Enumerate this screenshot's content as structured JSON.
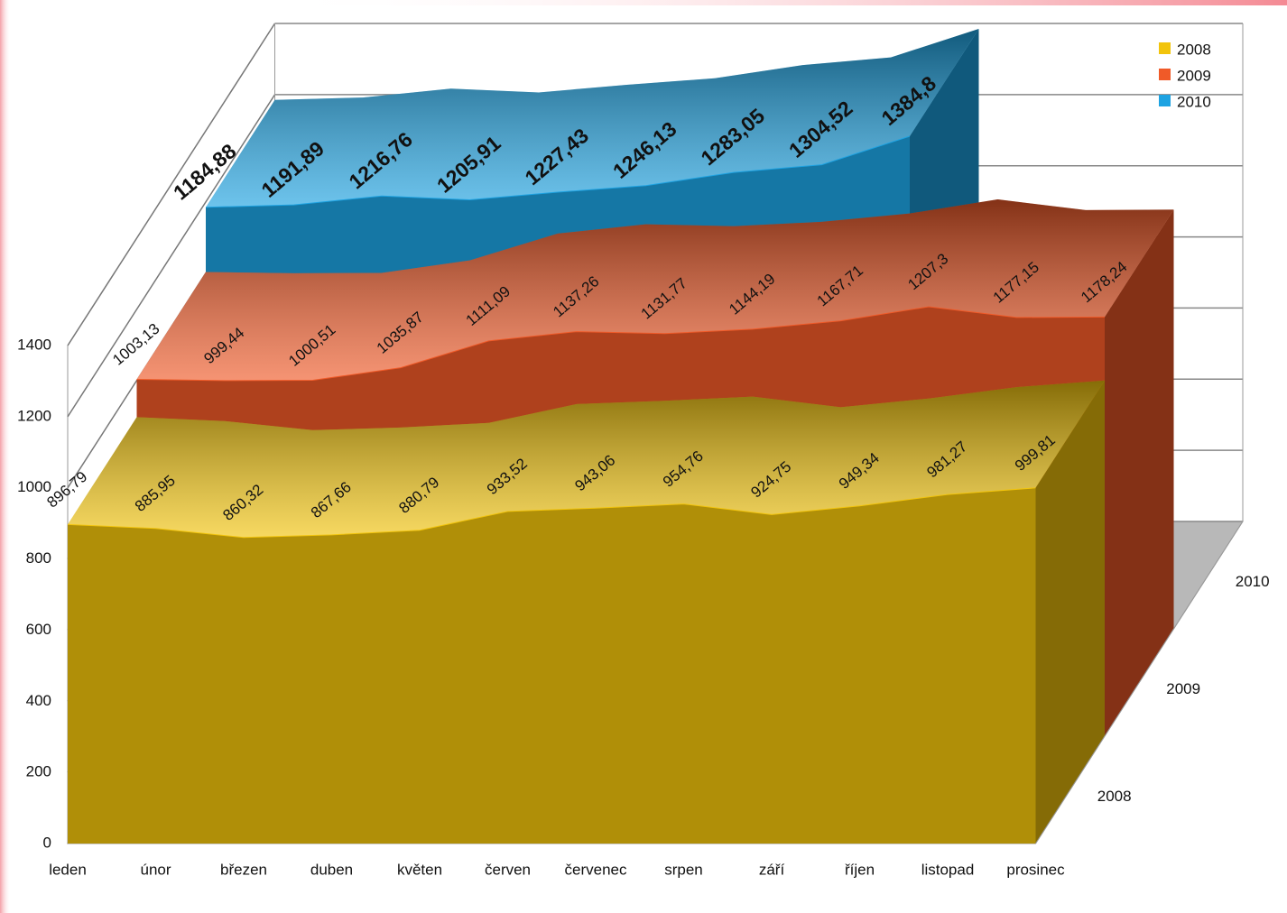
{
  "chart_data": {
    "type": "area",
    "categories": [
      "leden",
      "únor",
      "březen",
      "duben",
      "květen",
      "červen",
      "červenec",
      "srpen",
      "září",
      "říjen",
      "listopad",
      "prosinec"
    ],
    "series": [
      {
        "name": "2008",
        "color": "#f2c40c",
        "values": [
          896.79,
          885.95,
          860.32,
          867.66,
          880.79,
          933.52,
          943.06,
          954.76,
          924.75,
          949.34,
          981.27,
          999.81
        ],
        "value_labels": [
          "896,79",
          "885,95",
          "860,32",
          "867,66",
          "880,79",
          "933,52",
          "943,06",
          "954,76",
          "924,75",
          "949,34",
          "981,27",
          "999,81"
        ]
      },
      {
        "name": "2009",
        "color": "#f05a28",
        "values": [
          1003.13,
          999.44,
          1000.51,
          1035.87,
          1111.09,
          1137.26,
          1131.77,
          1144.19,
          1167.71,
          1207.3,
          1177.15,
          1178.24
        ],
        "value_labels": [
          "1003,13",
          "999,44",
          "1000,51",
          "1035,87",
          "1111,09",
          "1137,26",
          "1131,77",
          "1144,19",
          "1167,71",
          "1207,3",
          "1177,15",
          "1178,24"
        ]
      },
      {
        "name": "2010",
        "color": "#1ea3e2",
        "values": [
          1184.88,
          1191.89,
          1216.76,
          1205.91,
          1227.43,
          1246.13,
          1283.05,
          1304.52,
          1384.8,
          null,
          null,
          null
        ],
        "value_labels": [
          "1184,88",
          "1191,89",
          "1216,76",
          "1205,91",
          "1227,43",
          "1246,13",
          "1283,05",
          "1304,52",
          "1384,8",
          null,
          null,
          null
        ]
      }
    ],
    "ylim": [
      0,
      1400
    ],
    "yticks": [
      0,
      200,
      400,
      600,
      800,
      1000,
      1200,
      1400
    ],
    "grid": true,
    "legend": "top-right"
  }
}
